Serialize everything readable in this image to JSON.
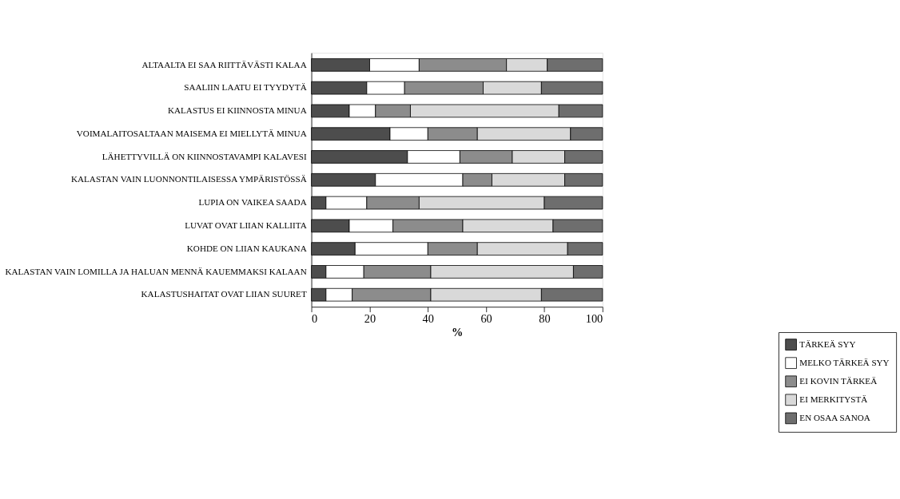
{
  "chart_data": {
    "type": "bar",
    "orientation": "horizontal",
    "stacked": true,
    "xlabel": "%",
    "xlim": [
      0,
      100
    ],
    "xticks": [
      0,
      20,
      40,
      60,
      80,
      100
    ],
    "grid": false,
    "legend": "bottom",
    "categories": [
      "ALTAALTA EI SAA RIITTÄVÄSTI KALAA",
      "SAALIIN LAATU EI TYYDYTÄ",
      "KALASTUS EI KIINNOSTA MINUA",
      "VOIMALAITOSALTAAN MAISEMA EI MIELLYTÄ MINUA",
      "LÄHETTYVILLÄ ON KIINNOSTAVAMPI KALAVESI",
      "KALASTAN VAIN LUONNONTILAISESSA YMPÄRISTÖSSÄ",
      "LUPIA ON VAIKEA SAADA",
      "LUVAT OVAT LIIAN KALLIITA",
      "KOHDE ON LIIAN KAUKANA",
      "KALASTAN VAIN LOMILLA JA HALUAN MENNÄ KAUEMMAKSI KALAAN",
      "KALASTUSHAITAT OVAT LIIAN SUURET"
    ],
    "series": [
      {
        "name": "TÄRKEÄ SYY",
        "color": "#4d4d4d",
        "values": [
          20,
          19,
          13,
          27,
          33,
          22,
          5,
          13,
          15,
          5,
          5
        ]
      },
      {
        "name": "MELKO TÄRKEÄ SYY",
        "color": "#ffffff",
        "values": [
          17,
          13,
          9,
          13,
          18,
          30,
          14,
          15,
          25,
          13,
          9
        ]
      },
      {
        "name": "EI KOVIN TÄRKEÄ",
        "color": "#8c8c8c",
        "values": [
          30,
          27,
          12,
          17,
          18,
          10,
          18,
          24,
          17,
          23,
          27
        ]
      },
      {
        "name": "EI MERKITYSTÄ",
        "color": "#d9d9d9",
        "values": [
          14,
          20,
          51,
          32,
          18,
          25,
          43,
          31,
          31,
          49,
          38
        ]
      },
      {
        "name": "EN OSAA SANOA",
        "color": "#6e6e6e",
        "values": [
          19,
          21,
          15,
          11,
          13,
          13,
          20,
          17,
          12,
          10,
          21
        ]
      }
    ]
  }
}
